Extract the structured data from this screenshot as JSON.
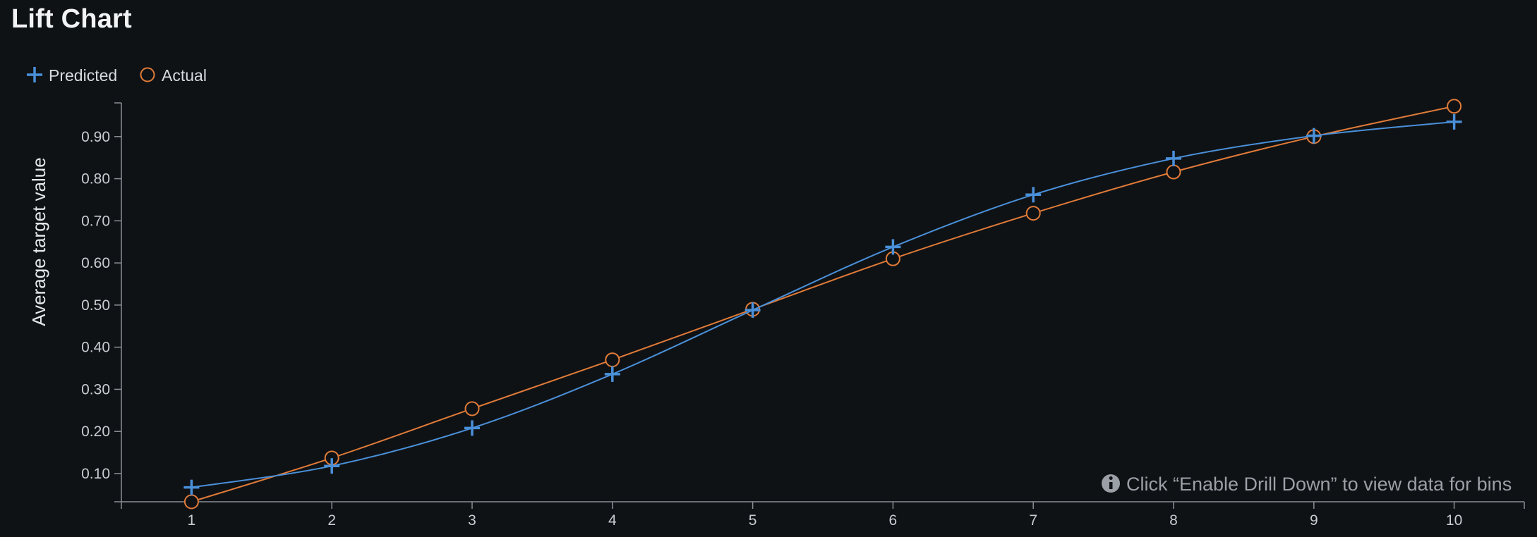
{
  "header": {
    "title": "Lift Chart"
  },
  "hint": {
    "icon": "info-icon",
    "text": "Click “Enable Drill Down” to view data for bins"
  },
  "chart_data": {
    "type": "line",
    "title": "Lift Chart",
    "xlabel": "",
    "ylabel": "Average target value",
    "x": [
      1,
      2,
      3,
      4,
      5,
      6,
      7,
      8,
      9,
      10
    ],
    "x_tick_labels": [
      "1",
      "2",
      "3",
      "4",
      "5",
      "6",
      "7",
      "8",
      "9",
      "10"
    ],
    "xlim": [
      0.5,
      10.5
    ],
    "ylim": [
      0.033,
      0.98
    ],
    "y_ticks": [
      0.1,
      0.2,
      0.3,
      0.4,
      0.5,
      0.6,
      0.7,
      0.8,
      0.9
    ],
    "y_tick_labels": [
      "0.10",
      "0.20",
      "0.30",
      "0.40",
      "0.50",
      "0.60",
      "0.70",
      "0.80",
      "0.90"
    ],
    "grid": false,
    "legend_placement": "top-left",
    "series": [
      {
        "name": "Predicted",
        "marker": "cross",
        "color": "#4a90d9",
        "values": [
          0.067,
          0.118,
          0.208,
          0.336,
          0.488,
          0.638,
          0.762,
          0.848,
          0.902,
          0.935
        ]
      },
      {
        "name": "Actual",
        "marker": "circle",
        "color": "#e07b39",
        "values": [
          0.033,
          0.137,
          0.254,
          0.37,
          0.49,
          0.61,
          0.718,
          0.816,
          0.9,
          0.972
        ]
      }
    ]
  }
}
